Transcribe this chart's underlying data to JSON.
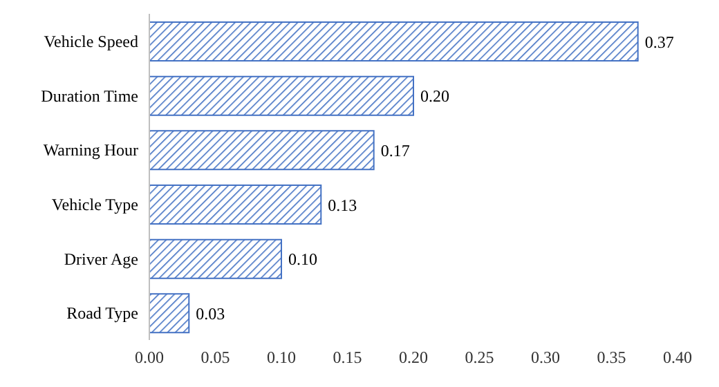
{
  "chart_data": {
    "type": "bar",
    "orientation": "horizontal",
    "categories": [
      "Vehicle Speed",
      "Duration Time",
      "Warning Hour",
      "Vehicle Type",
      "Driver Age",
      "Road Type"
    ],
    "values": [
      0.37,
      0.2,
      0.17,
      0.13,
      0.1,
      0.03
    ],
    "value_labels": [
      "0.37",
      "0.20",
      "0.17",
      "0.13",
      "0.10",
      "0.03"
    ],
    "color": "#4472c4",
    "xlim": [
      0,
      0.4
    ],
    "xticks": [
      {
        "value": 0,
        "label": "0.00"
      },
      {
        "value": 0.05,
        "label": "0.05"
      },
      {
        "value": 0.1,
        "label": "0.10"
      },
      {
        "value": 0.15,
        "label": "0.15"
      },
      {
        "value": 0.2,
        "label": "0.20"
      },
      {
        "value": 0.25,
        "label": "0.25"
      },
      {
        "value": 0.3,
        "label": "0.30"
      },
      {
        "value": 0.35,
        "label": "0.35"
      },
      {
        "value": 0.4,
        "label": "0.40"
      }
    ],
    "grid": false,
    "legend": false
  }
}
